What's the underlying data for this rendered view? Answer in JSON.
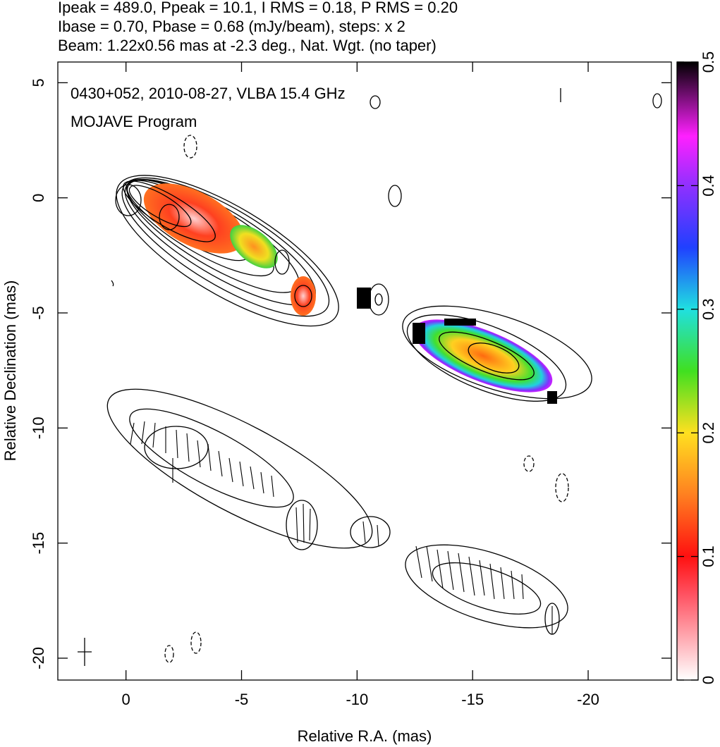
{
  "chart_data": {
    "type": "image",
    "title_lines": [
      "Ipeak = 489.0, Ppeak = 10.1, I RMS = 0.18, P RMS = 0.20",
      "Ibase = 0.70, Pbase = 0.68 (mJy/beam), steps: x 2",
      "Beam: 1.22x0.56 mas at -2.3 deg., Nat. Wgt. (no taper)"
    ],
    "annotations": [
      "0430+052, 2010-08-27, VLBA 15.4 GHz",
      "MOJAVE Program"
    ],
    "x_label": "Relative R.A. (mas)",
    "y_label": "Relative Declination (mas)",
    "xlim": [
      2.95,
      -23.6
    ],
    "ylim": [
      5.9,
      -20.95
    ],
    "xticks": [
      0,
      -5,
      -10,
      -15,
      -20
    ],
    "yticks": [
      5,
      0,
      -5,
      -10,
      -15,
      -20
    ],
    "colorbar": {
      "lim": [
        0,
        0.5
      ],
      "ticks": [
        0,
        0.1,
        0.2,
        0.3,
        0.4,
        0.5
      ]
    }
  }
}
